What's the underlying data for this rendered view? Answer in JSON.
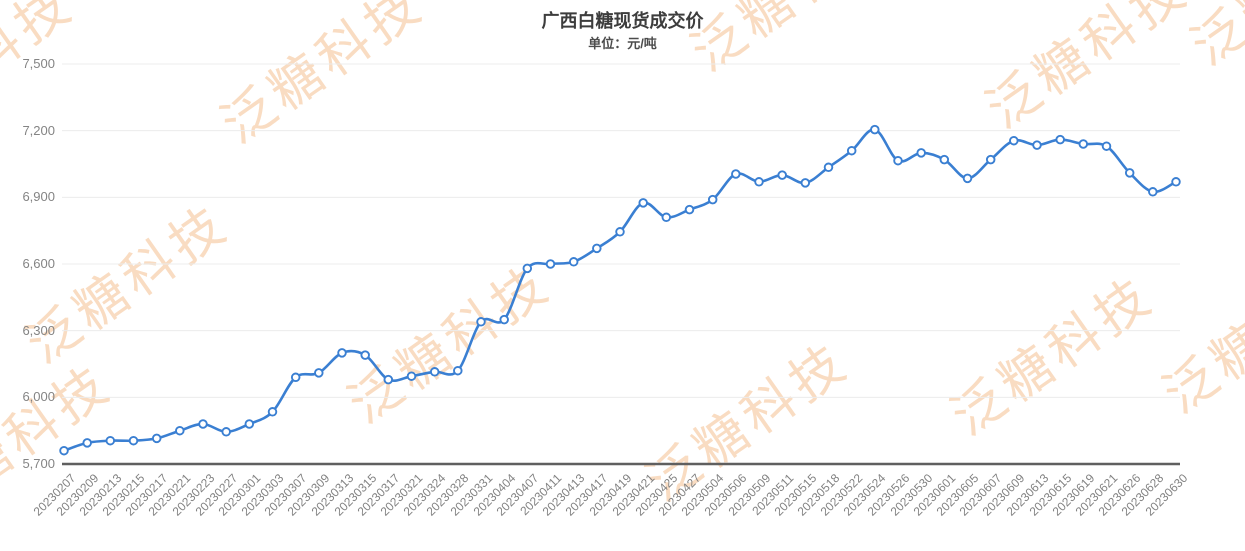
{
  "title": "广西白糖现货成交价",
  "subtitle": "单位：元/吨",
  "watermark_text": "泛糖科技",
  "colors": {
    "line": "#3a7fd2",
    "marker_fill": "#ffffff",
    "axis_line": "#5f5f5f",
    "gridline": "#ececec",
    "tick_label": "#848484",
    "title_text": "#3d3d3d",
    "watermark": "#f9dcc2"
  },
  "chart_data": {
    "type": "line",
    "title": "广西白糖现货成交价",
    "subtitle": "单位：元/吨",
    "xlabel": "",
    "ylabel": "元/吨",
    "ylim": [
      5700,
      7500
    ],
    "ytick_step": 300,
    "grid": true,
    "legend": false,
    "smooth": true,
    "marker": "open-circle",
    "yticks": [
      {
        "label": "7,500",
        "value": 7500
      },
      {
        "label": "7,200",
        "value": 7200
      },
      {
        "label": "6,900",
        "value": 6900
      },
      {
        "label": "6,600",
        "value": 6600
      },
      {
        "label": "6,300",
        "value": 6300
      },
      {
        "label": "6,000",
        "value": 6000
      },
      {
        "label": "5,700",
        "value": 5700
      }
    ],
    "categories": [
      "20230207",
      "20230209",
      "20230213",
      "20230215",
      "20230217",
      "20230221",
      "20230223",
      "20230227",
      "20230301",
      "20230303",
      "20230307",
      "20230309",
      "20230313",
      "20230315",
      "20230317",
      "20230321",
      "20230324",
      "20230328",
      "20230331",
      "20230404",
      "20230407",
      "20230411",
      "20230413",
      "20230417",
      "20230419",
      "20230421",
      "20230425",
      "20230427",
      "20230504",
      "20230506",
      "20230509",
      "20230511",
      "20230515",
      "20230518",
      "20230522",
      "20230524",
      "20230526",
      "20230530",
      "20230601",
      "20230605",
      "20230607",
      "20230609",
      "20230613",
      "20230615",
      "20230619",
      "20230621",
      "20230626",
      "20230628",
      "20230630"
    ],
    "values": [
      5760,
      5795,
      5805,
      5805,
      5815,
      5850,
      5880,
      5845,
      5880,
      5935,
      6090,
      6110,
      6200,
      6190,
      6080,
      6095,
      6115,
      6120,
      6340,
      6350,
      6580,
      6600,
      6610,
      6670,
      6745,
      6875,
      6810,
      6845,
      6890,
      7005,
      6970,
      7000,
      6965,
      7035,
      7110,
      7205,
      7065,
      7100,
      7070,
      6985,
      7070,
      7155,
      7135,
      7160,
      7140,
      7130,
      7010,
      6925,
      6970
    ]
  }
}
